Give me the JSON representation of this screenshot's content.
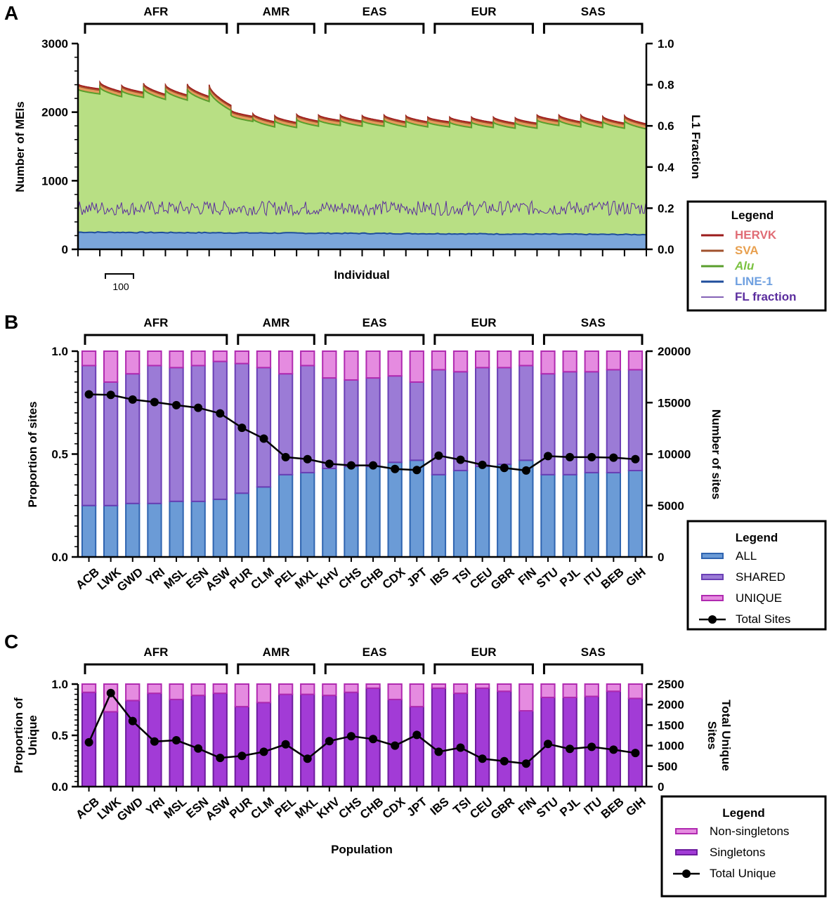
{
  "chart_data": [
    {
      "panel": "A",
      "type": "area",
      "xlabel": "Individual",
      "ylabel": "Number of  MEIs",
      "y2label": "L1  Fraction",
      "ylim": [
        0,
        3000
      ],
      "yticks": [
        0,
        1000,
        2000,
        3000
      ],
      "y2lim": [
        0,
        1.0
      ],
      "y2ticks": [
        "0.0",
        "0.2",
        "0.4",
        "0.6",
        "0.8",
        "1.0"
      ],
      "scale_bar_label": "100",
      "groups": [
        {
          "name": "AFR",
          "populations": [
            "ACB",
            "LWK",
            "GWD",
            "YRI",
            "MSL",
            "ESN",
            "ASW"
          ]
        },
        {
          "name": "AMR",
          "populations": [
            "PUR",
            "CLM",
            "PEL",
            "MXL"
          ]
        },
        {
          "name": "EAS",
          "populations": [
            "KHV",
            "CHS",
            "CHB",
            "CDX",
            "JPT"
          ]
        },
        {
          "name": "EUR",
          "populations": [
            "IBS",
            "TSI",
            "CEU",
            "GBR",
            "FIN"
          ]
        },
        {
          "name": "SAS",
          "populations": [
            "STU",
            "PJL",
            "ITU",
            "BEB",
            "GIH"
          ]
        }
      ],
      "population_start_max_mei": [
        2410,
        2440,
        2390,
        2420,
        2400,
        2410,
        2400,
        2030,
        1980,
        1950,
        1970,
        1960,
        1960,
        1950,
        1960,
        1950,
        1930,
        1930,
        1930,
        1930,
        1920,
        1960,
        1960,
        1960,
        1940,
        1950
      ],
      "population_end_max_mei": [
        2340,
        2300,
        2290,
        2260,
        2250,
        2230,
        2100,
        1940,
        1860,
        1850,
        1870,
        1880,
        1870,
        1870,
        1860,
        1860,
        1860,
        1850,
        1850,
        1840,
        1840,
        1880,
        1860,
        1850,
        1840,
        1830
      ],
      "series": [
        {
          "name": "HERVK",
          "color": "#9B1B1B",
          "label_color": "#E06C75",
          "approx_top_offset": 0
        },
        {
          "name": "SVA",
          "color": "#A0522D",
          "label_color": "#E8A04F",
          "approx_top_offset": -40
        },
        {
          "name": "Alu",
          "color": "#5A9E2C",
          "label_color": "#7CC242",
          "fill": "#B8DF84",
          "approx_top_offset": -80
        },
        {
          "name": "LINE-1",
          "color": "#1F4E9C",
          "label_color": "#6FA0E0",
          "fill": "#7BA6DA",
          "approx_value": 230
        },
        {
          "name": "FL fraction",
          "color": "#5B2D9E",
          "label_color": "#5B2D9E",
          "approx_value": 0.2,
          "axis": "right"
        }
      ],
      "legend": {
        "title": "Legend",
        "entries": [
          "HERVK",
          "SVA",
          "Alu",
          "LINE-1",
          "FL fraction"
        ]
      }
    },
    {
      "panel": "B",
      "type": "bar",
      "stacked": true,
      "ylabel": "Proportion of sites",
      "y2label": "Number of  sites",
      "ylim": [
        0,
        1.0
      ],
      "yticks": [
        "0.0",
        "0.5",
        "1.0"
      ],
      "y2lim": [
        0,
        20000
      ],
      "y2ticks": [
        "0",
        "5000",
        "10000",
        "15000",
        "20000"
      ],
      "categories": [
        "ACB",
        "LWK",
        "GWD",
        "YRI",
        "MSL",
        "ESN",
        "ASW",
        "PUR",
        "CLM",
        "PEL",
        "MXL",
        "KHV",
        "CHS",
        "CHB",
        "CDX",
        "JPT",
        "IBS",
        "TSI",
        "CEU",
        "GBR",
        "FIN",
        "STU",
        "PJL",
        "ITU",
        "BEB",
        "GIH"
      ],
      "series": [
        {
          "name": "ALL",
          "color": "#6B9BD6",
          "edge": "#2F64B0",
          "values": [
            0.25,
            0.25,
            0.26,
            0.26,
            0.27,
            0.27,
            0.28,
            0.31,
            0.34,
            0.4,
            0.41,
            0.43,
            0.44,
            0.44,
            0.46,
            0.47,
            0.4,
            0.42,
            0.44,
            0.45,
            0.47,
            0.4,
            0.4,
            0.41,
            0.41,
            0.42
          ]
        },
        {
          "name": "SHARED",
          "color": "#9B7BD6",
          "edge": "#6A3FB5",
          "values": [
            0.68,
            0.6,
            0.63,
            0.67,
            0.65,
            0.66,
            0.67,
            0.63,
            0.58,
            0.49,
            0.52,
            0.44,
            0.42,
            0.43,
            0.42,
            0.38,
            0.51,
            0.48,
            0.48,
            0.47,
            0.46,
            0.49,
            0.5,
            0.49,
            0.5,
            0.49
          ]
        },
        {
          "name": "UNIQUE",
          "color": "#E58BE0",
          "edge": "#B02AB0",
          "values": [
            0.07,
            0.15,
            0.11,
            0.07,
            0.08,
            0.07,
            0.05,
            0.06,
            0.08,
            0.11,
            0.07,
            0.13,
            0.14,
            0.13,
            0.12,
            0.15,
            0.09,
            0.1,
            0.08,
            0.08,
            0.07,
            0.11,
            0.1,
            0.1,
            0.09,
            0.09
          ]
        }
      ],
      "line": {
        "name": "Total Sites",
        "axis": "right",
        "values": [
          15800,
          15750,
          15300,
          15050,
          14750,
          14500,
          13950,
          12550,
          11500,
          9700,
          9500,
          9050,
          8900,
          8900,
          8550,
          8450,
          9850,
          9450,
          8950,
          8650,
          8400,
          9800,
          9700,
          9700,
          9650,
          9500
        ]
      },
      "legend": {
        "title": "Legend",
        "entries": [
          "ALL",
          "SHARED",
          "UNIQUE",
          "Total Sites"
        ]
      }
    },
    {
      "panel": "C",
      "type": "bar",
      "stacked": true,
      "xlabel": "Population",
      "ylabel": "Proportion of Unique",
      "ylabel_lines": [
        "Proportion of",
        "Unique"
      ],
      "y2label": "Total  Unique Sites",
      "y2label_lines": [
        "Total  Unique",
        "Sites"
      ],
      "ylim": [
        0,
        1.0
      ],
      "yticks": [
        "0.0",
        "0.5",
        "1.0"
      ],
      "y2lim": [
        0,
        2500
      ],
      "y2ticks": [
        "0",
        "500",
        "1000",
        "1500",
        "2000",
        "2500"
      ],
      "categories": [
        "ACB",
        "LWK",
        "GWD",
        "YRI",
        "MSL",
        "ESN",
        "ASW",
        "PUR",
        "CLM",
        "PEL",
        "MXL",
        "KHV",
        "CHS",
        "CHB",
        "CDX",
        "JPT",
        "IBS",
        "TSI",
        "CEU",
        "GBR",
        "FIN",
        "STU",
        "PJL",
        "ITU",
        "BEB",
        "GIH"
      ],
      "series": [
        {
          "name": "Singletons",
          "color": "#A23BD6",
          "edge": "#6E1C9E",
          "values": [
            0.92,
            0.73,
            0.84,
            0.91,
            0.85,
            0.89,
            0.91,
            0.78,
            0.82,
            0.9,
            0.9,
            0.89,
            0.92,
            0.96,
            0.85,
            0.78,
            0.96,
            0.91,
            0.96,
            0.93,
            0.74,
            0.87,
            0.87,
            0.88,
            0.93,
            0.86
          ]
        },
        {
          "name": "Non-singletons",
          "color": "#E58BE0",
          "edge": "#B02AB0",
          "values": [
            0.08,
            0.27,
            0.16,
            0.09,
            0.15,
            0.11,
            0.09,
            0.22,
            0.18,
            0.1,
            0.1,
            0.11,
            0.08,
            0.04,
            0.15,
            0.22,
            0.04,
            0.09,
            0.04,
            0.07,
            0.26,
            0.13,
            0.13,
            0.12,
            0.07,
            0.14
          ]
        }
      ],
      "line": {
        "name": "Total Unique",
        "axis": "right",
        "values": [
          1080,
          2280,
          1600,
          1100,
          1130,
          930,
          700,
          750,
          850,
          1030,
          680,
          1110,
          1230,
          1160,
          1000,
          1260,
          850,
          950,
          680,
          620,
          560,
          1040,
          920,
          970,
          900,
          820
        ]
      },
      "legend": {
        "title": "Legend",
        "entries": [
          "Non-singletons",
          "Singletons",
          "Total Unique"
        ]
      }
    }
  ],
  "panel_letters": [
    "A",
    "B",
    "C"
  ]
}
